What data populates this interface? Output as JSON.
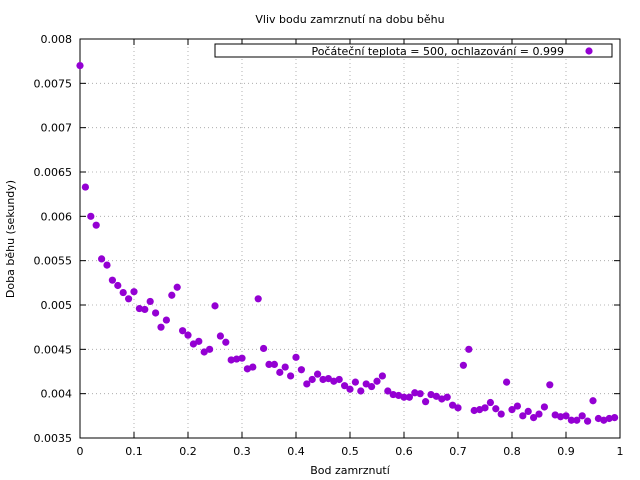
{
  "chart_data": {
    "type": "scatter",
    "title": "Vliv bodu zamrznutí na dobu běhu",
    "xlabel": "Bod zamrznutí",
    "ylabel": "Doba běhu (sekundy)",
    "xlim": [
      0,
      1
    ],
    "ylim": [
      0.0035,
      0.008
    ],
    "x_ticks": [
      0,
      0.1,
      0.2,
      0.3,
      0.4,
      0.5,
      0.6,
      0.7,
      0.8,
      0.9,
      1
    ],
    "x_tick_labels": [
      "0",
      "0.1",
      "0.2",
      "0.3",
      "0.4",
      "0.5",
      "0.6",
      "0.7",
      "0.8",
      "0.9",
      "1"
    ],
    "y_ticks": [
      0.0035,
      0.004,
      0.0045,
      0.005,
      0.0055,
      0.006,
      0.0065,
      0.007,
      0.0075,
      0.008
    ],
    "y_tick_labels": [
      "0.0035",
      "0.004",
      "0.0045",
      "0.005",
      "0.0055",
      "0.006",
      "0.0065",
      "0.007",
      "0.0075",
      "0.008"
    ],
    "grid": true,
    "legend_position": "top-right",
    "series": [
      {
        "name": "Počáteční teplota = 500, ochlazování = 0.999",
        "color": "#9400d3",
        "x": [
          0,
          0.01,
          0.02,
          0.03,
          0.04,
          0.05,
          0.06,
          0.07,
          0.08,
          0.09,
          0.1,
          0.11,
          0.12,
          0.13,
          0.14,
          0.15,
          0.16,
          0.17,
          0.18,
          0.19,
          0.2,
          0.21,
          0.22,
          0.23,
          0.24,
          0.25,
          0.26,
          0.27,
          0.28,
          0.29,
          0.3,
          0.31,
          0.32,
          0.33,
          0.34,
          0.35,
          0.36,
          0.37,
          0.38,
          0.39,
          0.4,
          0.41,
          0.42,
          0.43,
          0.44,
          0.45,
          0.46,
          0.47,
          0.48,
          0.49,
          0.5,
          0.51,
          0.52,
          0.53,
          0.54,
          0.55,
          0.56,
          0.57,
          0.58,
          0.59,
          0.6,
          0.61,
          0.62,
          0.63,
          0.64,
          0.65,
          0.66,
          0.67,
          0.68,
          0.69,
          0.7,
          0.71,
          0.72,
          0.73,
          0.74,
          0.75,
          0.76,
          0.77,
          0.78,
          0.79,
          0.8,
          0.81,
          0.82,
          0.83,
          0.84,
          0.85,
          0.86,
          0.87,
          0.88,
          0.89,
          0.9,
          0.91,
          0.92,
          0.93,
          0.94,
          0.95,
          0.96,
          0.97,
          0.98,
          0.99
        ],
        "y": [
          0.0077,
          0.00633,
          0.006,
          0.0059,
          0.00552,
          0.00545,
          0.00528,
          0.00522,
          0.00514,
          0.00507,
          0.00515,
          0.00496,
          0.00495,
          0.00504,
          0.00491,
          0.00475,
          0.00483,
          0.00511,
          0.0052,
          0.00471,
          0.00466,
          0.00456,
          0.00459,
          0.00447,
          0.0045,
          0.00499,
          0.00465,
          0.00458,
          0.00438,
          0.00439,
          0.0044,
          0.00428,
          0.0043,
          0.00507,
          0.00451,
          0.00433,
          0.00433,
          0.00424,
          0.0043,
          0.0042,
          0.00441,
          0.00427,
          0.00411,
          0.00416,
          0.00422,
          0.00416,
          0.00417,
          0.00414,
          0.00416,
          0.00409,
          0.00405,
          0.00413,
          0.00403,
          0.00411,
          0.00408,
          0.00414,
          0.0042,
          0.00403,
          0.00399,
          0.00398,
          0.00396,
          0.00396,
          0.00401,
          0.004,
          0.00391,
          0.00399,
          0.00397,
          0.00394,
          0.00396,
          0.00387,
          0.00384,
          0.00432,
          0.0045,
          0.00381,
          0.00382,
          0.00384,
          0.0039,
          0.00383,
          0.00377,
          0.00413,
          0.00382,
          0.00386,
          0.00375,
          0.0038,
          0.00373,
          0.00377,
          0.00385,
          0.0041,
          0.00376,
          0.00374,
          0.00375,
          0.0037,
          0.0037,
          0.00375,
          0.00369,
          0.00392,
          0.00372,
          0.0037,
          0.00372,
          0.00373
        ]
      }
    ]
  }
}
